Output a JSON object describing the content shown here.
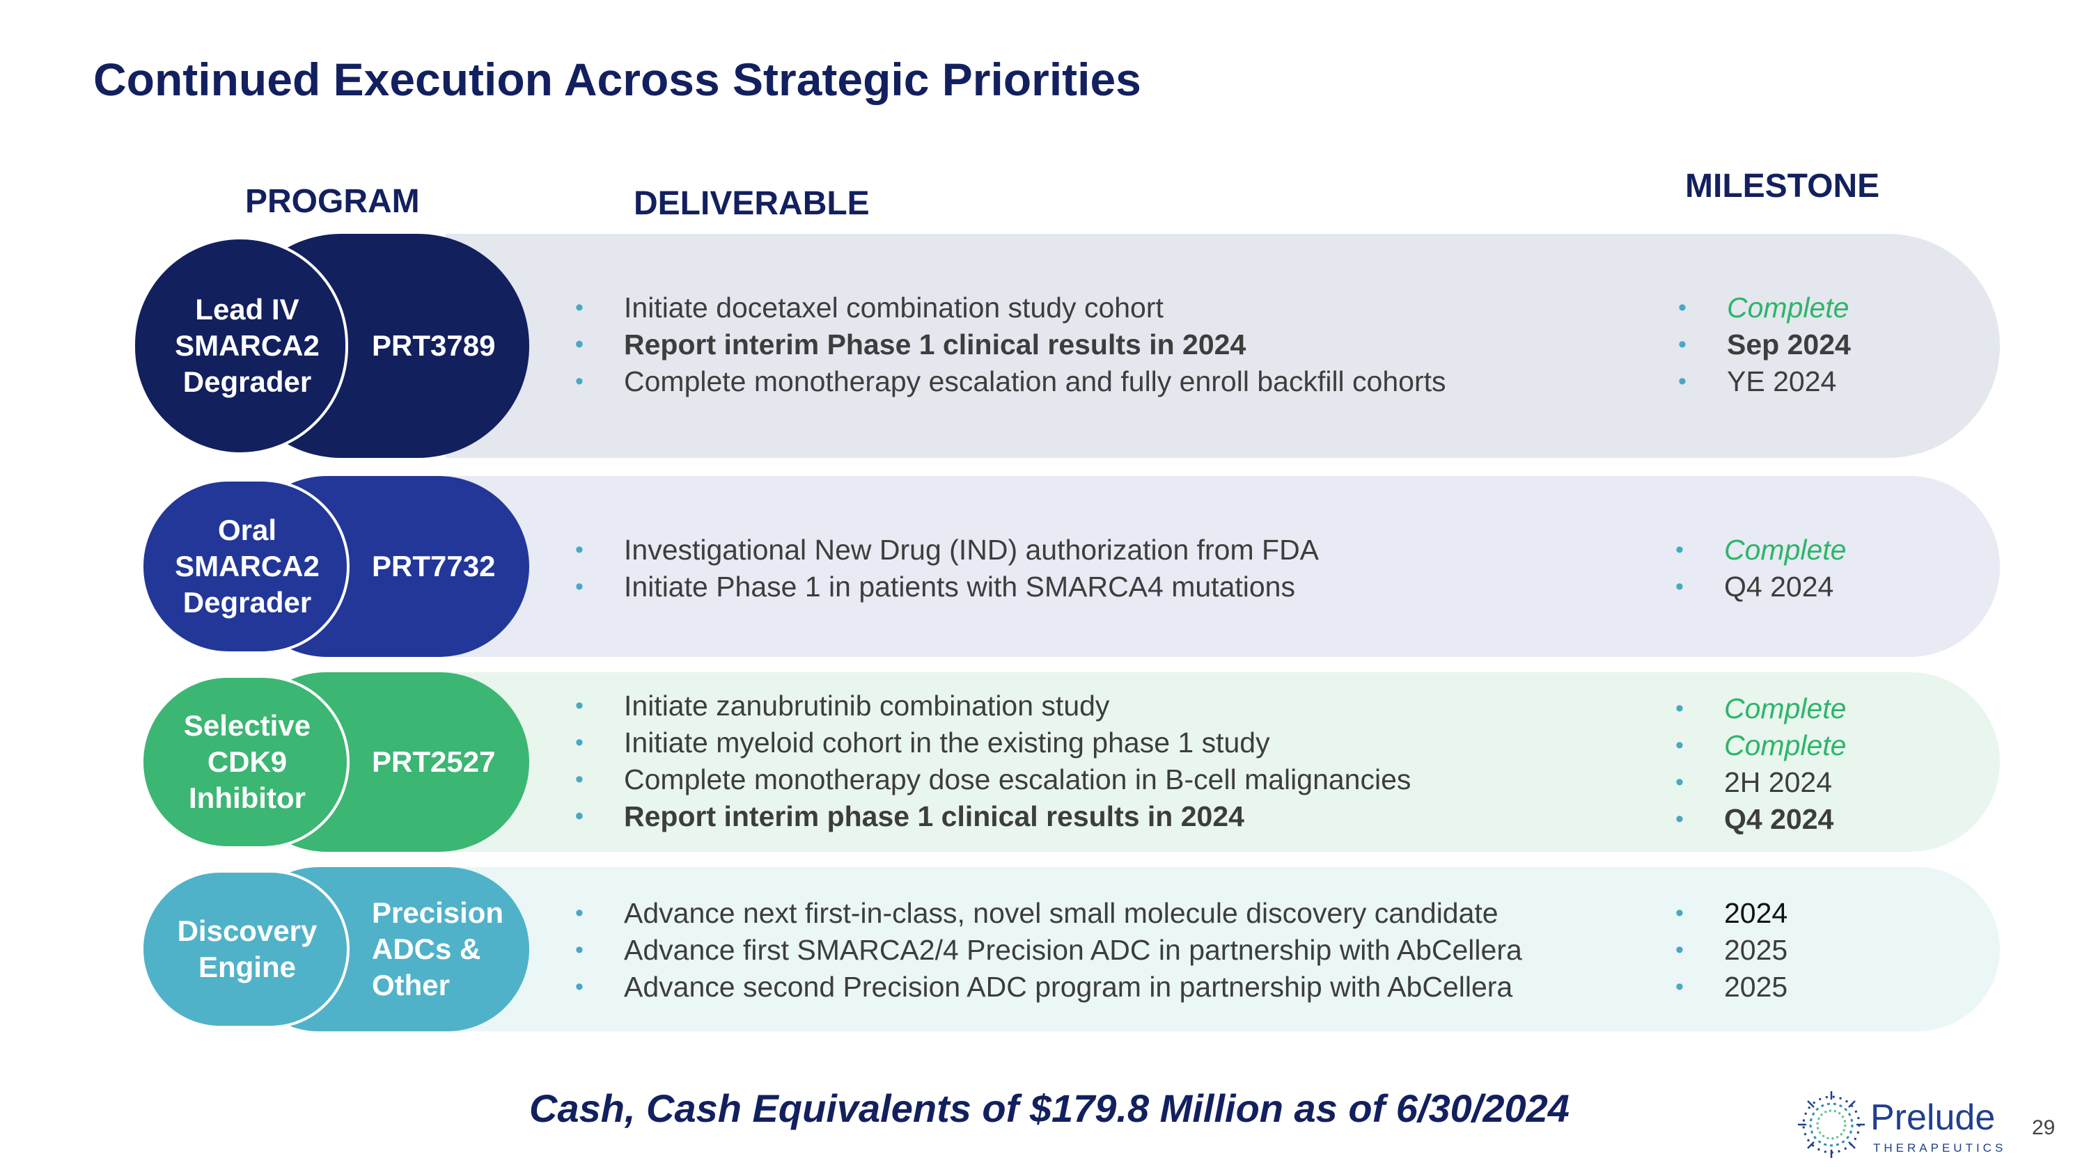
{
  "title": "Continued Execution Across Strategic Priorities",
  "headers": {
    "program": "PROGRAM",
    "deliverable": "DELIVERABLE",
    "milestone": "MILESTONE"
  },
  "colors": {
    "navy": "#13205f",
    "row1_dark": "#12205e",
    "row1_band": "#e4e7ee",
    "row2_dark": "#233799",
    "row2_band": "#e8eaf4",
    "row3_dark": "#3cb673",
    "row3_band": "#e9f6ee",
    "row4_dark": "#50b2c8",
    "row4_band": "#ebf6f7",
    "bullet": "#4aa7c5",
    "complete": "#2db56a"
  },
  "rows": [
    {
      "program_lines": [
        "Lead IV",
        "SMARCA2",
        "Degrader"
      ],
      "code_lines": [
        "PRT3789"
      ],
      "deliverables": [
        {
          "text": "Initiate docetaxel combination study cohort",
          "bold": false
        },
        {
          "text": "Report interim Phase 1 clinical results in 2024",
          "bold": true
        },
        {
          "text": "Complete monotherapy escalation and fully enroll backfill cohorts",
          "bold": false
        }
      ],
      "milestones": [
        {
          "text": "Complete",
          "style": "complete"
        },
        {
          "text": "Sep 2024",
          "style": "bold"
        },
        {
          "text": "YE 2024",
          "style": "normal"
        }
      ]
    },
    {
      "program_lines": [
        "Oral",
        "SMARCA2",
        "Degrader"
      ],
      "code_lines": [
        "PRT7732"
      ],
      "deliverables": [
        {
          "text": "Investigational New Drug (IND) authorization from FDA",
          "bold": false
        },
        {
          "text": "Initiate Phase 1 in patients with SMARCA4 mutations",
          "bold": false
        }
      ],
      "milestones": [
        {
          "text": "Complete",
          "style": "complete"
        },
        {
          "text": "Q4 2024",
          "style": "normal"
        }
      ]
    },
    {
      "program_lines": [
        "Selective",
        "CDK9",
        "Inhibitor"
      ],
      "code_lines": [
        "PRT2527"
      ],
      "deliverables": [
        {
          "text": "Initiate zanubrutinib combination study",
          "bold": false
        },
        {
          "text": "Initiate myeloid cohort in the existing phase 1 study",
          "bold": false
        },
        {
          "text": "Complete monotherapy dose escalation in B-cell malignancies",
          "bold": false
        },
        {
          "text": "Report interim phase 1 clinical results in 2024",
          "bold": true
        }
      ],
      "milestones": [
        {
          "text": "Complete",
          "style": "complete"
        },
        {
          "text": "Complete",
          "style": "complete"
        },
        {
          "text": "2H 2024",
          "style": "normal"
        },
        {
          "text": "Q4 2024",
          "style": "bold"
        }
      ]
    },
    {
      "program_lines": [
        "Discovery",
        "Engine"
      ],
      "code_lines": [
        "Precision",
        "ADCs &",
        "Other"
      ],
      "deliverables": [
        {
          "text": "Advance next first-in-class, novel small molecule discovery candidate",
          "bold": false
        },
        {
          "text": "Advance first SMARCA2/4 Precision ADC in partnership with AbCellera",
          "bold": false
        },
        {
          "text": "Advance second Precision ADC program in partnership with AbCellera",
          "bold": false
        }
      ],
      "milestones": [
        {
          "text": "2024",
          "style": "dark"
        },
        {
          "text": "2025",
          "style": "normal"
        },
        {
          "text": "2025",
          "style": "normal"
        }
      ]
    }
  ],
  "bullet_char": "•",
  "cash_text": "Cash, Cash Equivalents of $179.8 Million as of 6/30/2024",
  "logo": {
    "word": "Prelude",
    "sub": "THERAPEUTICS",
    "icon": "starburst-logo-icon"
  },
  "page_number": "29"
}
